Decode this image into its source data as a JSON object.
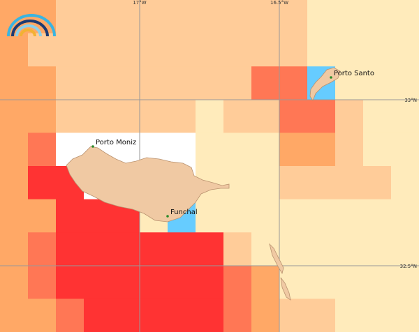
{
  "map": {
    "grid_labels": {
      "lon": [
        "17°W",
        "16.5°W"
      ],
      "lat": [
        "33°N",
        "32.5°N"
      ]
    },
    "places": [
      "Porto Moniz",
      "Funchal",
      "Porto Santo"
    ]
  }
}
